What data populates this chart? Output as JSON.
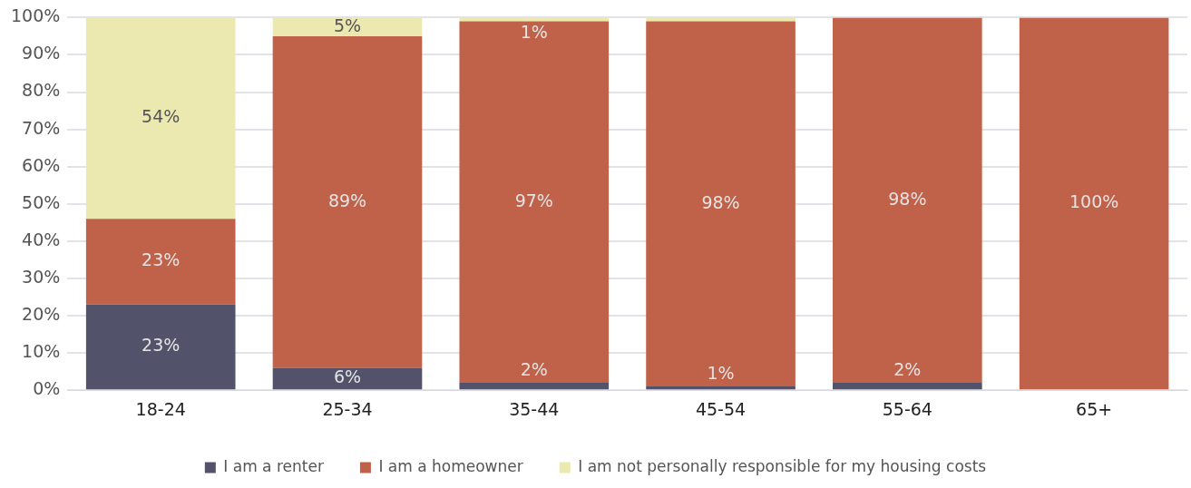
{
  "chart_data": {
    "type": "bar",
    "stacked": true,
    "categories": [
      "18-24",
      "25-34",
      "35-44",
      "45-54",
      "55-64",
      "65+"
    ],
    "series": [
      {
        "name": "I am a renter",
        "color": "#52526a",
        "values": [
          23,
          6,
          2,
          1,
          2,
          0
        ],
        "value_labels": [
          "23%",
          "6%",
          "2%",
          "1%",
          "2%",
          null
        ]
      },
      {
        "name": "I am a homeowner",
        "color": "#c0614a",
        "values": [
          23,
          89,
          97,
          98,
          98,
          100
        ],
        "value_labels": [
          "23%",
          "89%",
          "97%",
          "98%",
          "98%",
          "100%"
        ]
      },
      {
        "name": "I am not personally responsible for my housing costs",
        "color": "#ece9b0",
        "values": [
          54,
          5,
          1,
          1,
          0,
          0
        ],
        "value_labels": [
          "54%",
          "5%",
          "1%",
          null,
          null,
          null
        ]
      }
    ],
    "ylim": [
      0,
      100
    ],
    "yticks": [
      {
        "value": 0,
        "label": "0%"
      },
      {
        "value": 10,
        "label": "10%"
      },
      {
        "value": 20,
        "label": "20%"
      },
      {
        "value": 30,
        "label": "30%"
      },
      {
        "value": 40,
        "label": "40%"
      },
      {
        "value": 50,
        "label": "50%"
      },
      {
        "value": 60,
        "label": "60%"
      },
      {
        "value": 70,
        "label": "70%"
      },
      {
        "value": 80,
        "label": "80%"
      },
      {
        "value": 90,
        "label": "90%"
      },
      {
        "value": 100,
        "label": "100%"
      }
    ],
    "grid": "y",
    "legend": "bottom"
  }
}
